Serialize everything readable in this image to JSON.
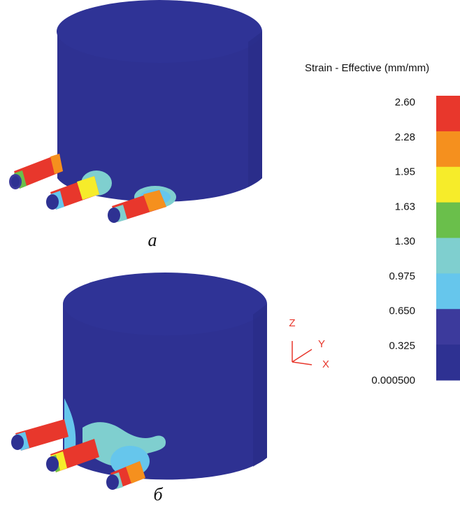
{
  "figure": {
    "caption_top": "а",
    "caption_bottom": "б"
  },
  "legend": {
    "title": "Strain - Effective (mm/mm)",
    "ticks": [
      "2.60",
      "2.28",
      "1.95",
      "1.63",
      "1.30",
      "0.975",
      "0.650",
      "0.325",
      "0.000500"
    ],
    "colors": [
      "#e8372c",
      "#f5901e",
      "#f6ec2a",
      "#6abf4b",
      "#7fcfcf",
      "#66c6ec",
      "#3c3a9c",
      "#2e3192"
    ]
  },
  "axes_triad": {
    "z": "Z",
    "y": "Y",
    "x": "X",
    "color": "#e8372c"
  },
  "palette": {
    "body": "#2e3192",
    "body_top": "#2f3396",
    "body_edge": "#3a3ea8"
  }
}
